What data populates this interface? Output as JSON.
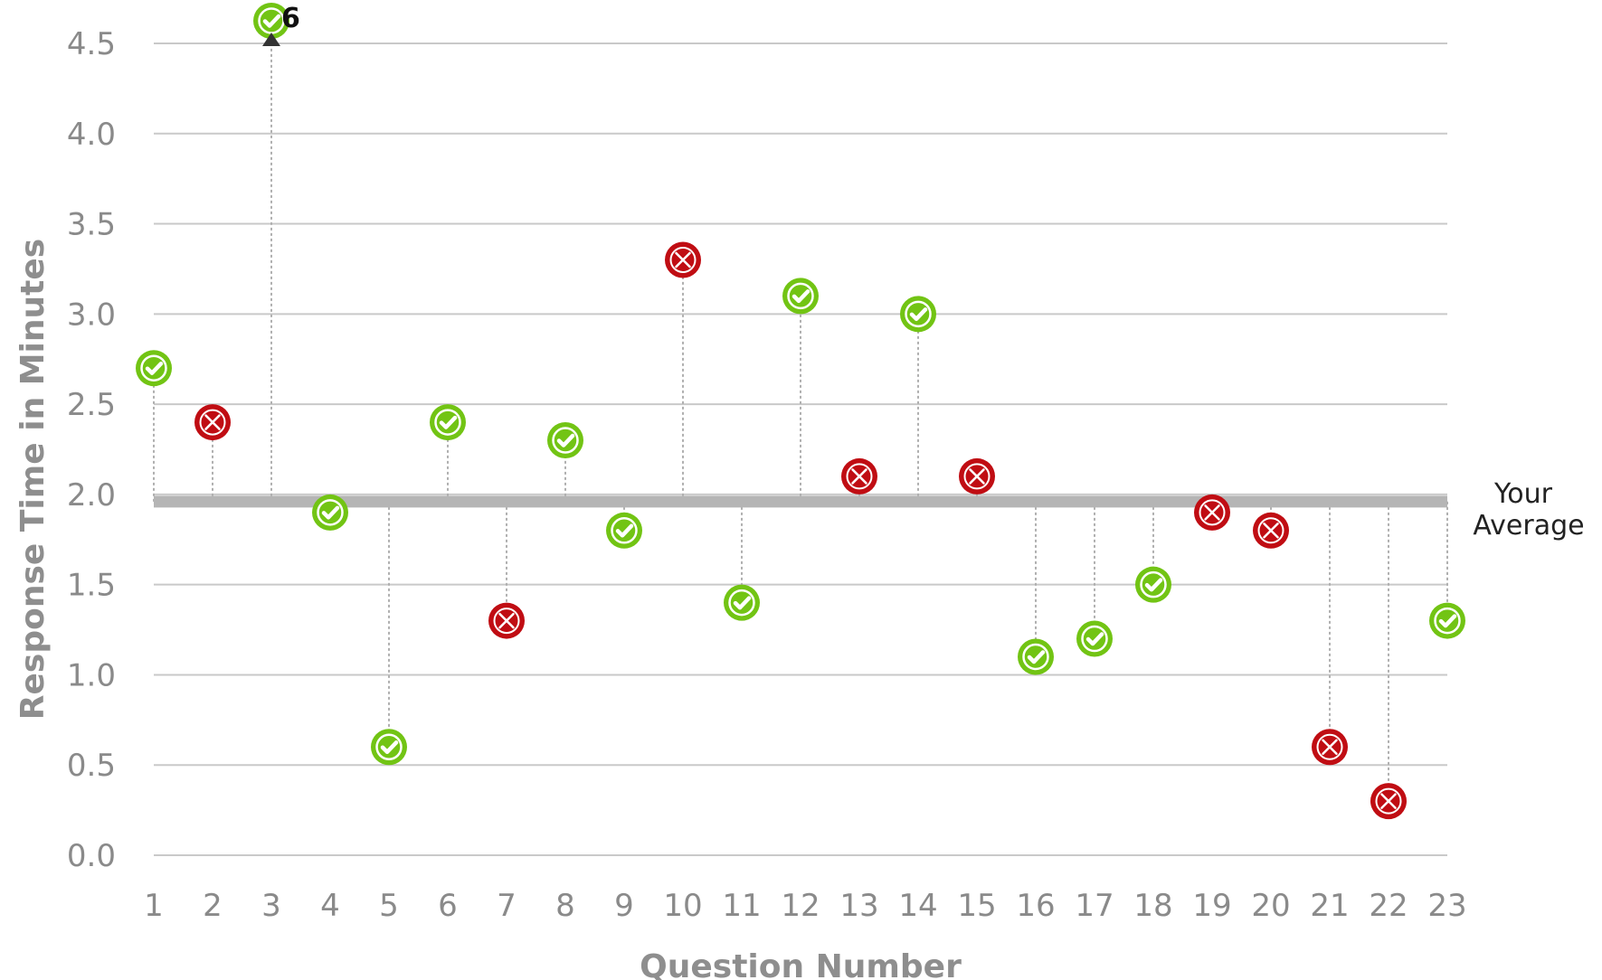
{
  "chart_data": {
    "type": "scatter",
    "xlabel": "Question Number",
    "ylabel": "Response Time in Minutes",
    "ylim": [
      0,
      4.5
    ],
    "yticks": [
      "0.0",
      "0.5",
      "1.0",
      "1.5",
      "2.0",
      "2.5",
      "3.0",
      "3.5",
      "4.0",
      "4.5"
    ],
    "xticks": [
      "1",
      "2",
      "3",
      "4",
      "5",
      "6",
      "7",
      "8",
      "9",
      "10",
      "11",
      "12",
      "13",
      "14",
      "15",
      "16",
      "17",
      "18",
      "19",
      "20",
      "21",
      "22",
      "23"
    ],
    "grid": true,
    "average": {
      "value": 1.96,
      "label_line1": "Your",
      "label_line2": "Average"
    },
    "overflow": {
      "question": 3,
      "label": "6",
      "actual_value": 6
    },
    "points": [
      {
        "x": 1,
        "y": 2.7,
        "result": "correct"
      },
      {
        "x": 2,
        "y": 2.4,
        "result": "incorrect"
      },
      {
        "x": 3,
        "y": 4.6,
        "result": "correct"
      },
      {
        "x": 4,
        "y": 1.9,
        "result": "correct"
      },
      {
        "x": 5,
        "y": 0.6,
        "result": "correct"
      },
      {
        "x": 6,
        "y": 2.4,
        "result": "correct"
      },
      {
        "x": 7,
        "y": 1.3,
        "result": "incorrect"
      },
      {
        "x": 8,
        "y": 2.3,
        "result": "correct"
      },
      {
        "x": 9,
        "y": 1.8,
        "result": "correct"
      },
      {
        "x": 10,
        "y": 3.3,
        "result": "incorrect"
      },
      {
        "x": 11,
        "y": 1.4,
        "result": "correct"
      },
      {
        "x": 12,
        "y": 3.1,
        "result": "correct"
      },
      {
        "x": 13,
        "y": 2.1,
        "result": "incorrect"
      },
      {
        "x": 14,
        "y": 3.0,
        "result": "correct"
      },
      {
        "x": 15,
        "y": 2.1,
        "result": "incorrect"
      },
      {
        "x": 16,
        "y": 1.1,
        "result": "correct"
      },
      {
        "x": 17,
        "y": 1.2,
        "result": "correct"
      },
      {
        "x": 18,
        "y": 1.5,
        "result": "correct"
      },
      {
        "x": 19,
        "y": 1.9,
        "result": "incorrect"
      },
      {
        "x": 20,
        "y": 1.8,
        "result": "incorrect"
      },
      {
        "x": 21,
        "y": 0.6,
        "result": "incorrect"
      },
      {
        "x": 22,
        "y": 0.3,
        "result": "incorrect"
      },
      {
        "x": 23,
        "y": 1.3,
        "result": "correct"
      }
    ]
  },
  "colors": {
    "correct": "#72c414",
    "incorrect": "#c00d13",
    "grid": "#c9c9c9",
    "average_line": "#b5b5b5",
    "stem": "#b0b0b0"
  }
}
